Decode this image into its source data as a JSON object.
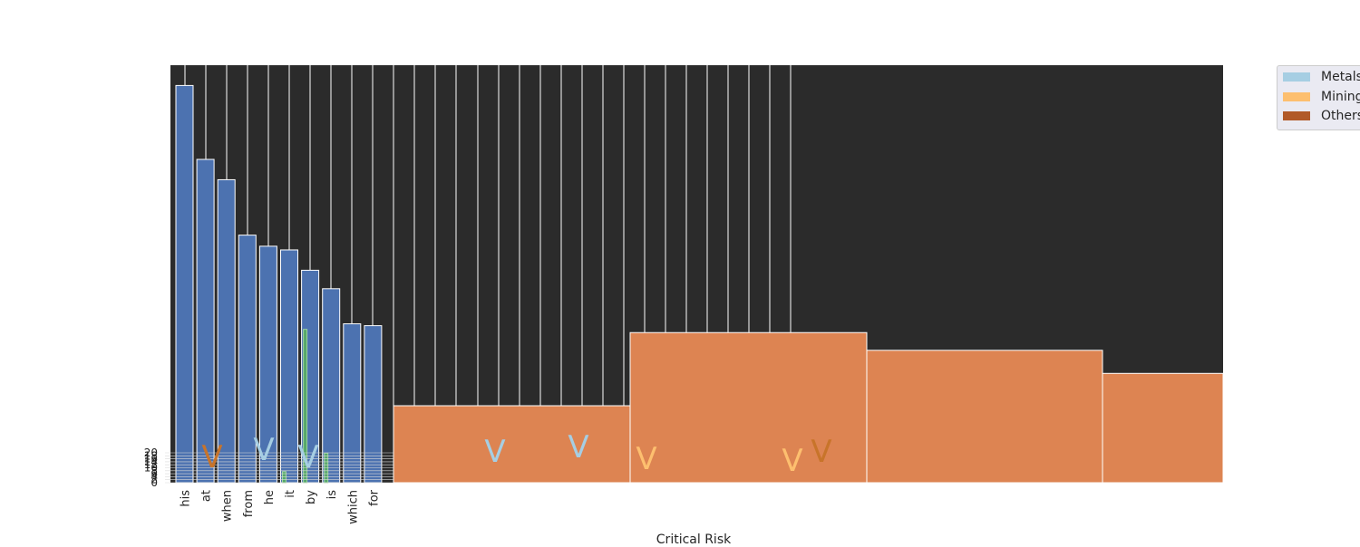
{
  "chart_data": {
    "type": "bar",
    "xlabel": "Critical Risk",
    "categories": [
      "his",
      "at",
      "when",
      "from",
      "he",
      "it",
      "by",
      "is",
      "which",
      "for"
    ],
    "series": [
      {
        "values": [
          21.5,
          17.5,
          16.4,
          13.4,
          12.8,
          12.6,
          11.5,
          10.5,
          8.6,
          8.5
        ],
        "color": "#4c72b0"
      },
      {
        "values": [
          0,
          0,
          0,
          0,
          0,
          0.6,
          8.3,
          1.6,
          0,
          0
        ],
        "color": "#55a868"
      }
    ],
    "broad_bars": {
      "color": "#dd8452",
      "values": [
        1.0,
        1.95,
        1.72,
        1.42
      ]
    },
    "y_ticks": [
      "0",
      "2",
      "4",
      "6",
      "8",
      "10",
      "12",
      "14",
      "16",
      "18",
      "20"
    ],
    "markers": [
      {
        "symbol": "V",
        "color": "#c8742a"
      },
      {
        "symbol": "V",
        "color": "#a6cee3"
      },
      {
        "symbol": "V",
        "color": "#a6cee3"
      },
      {
        "symbol": "V",
        "color": "#a6cee3"
      },
      {
        "symbol": "V",
        "color": "#a6cee3"
      },
      {
        "symbol": "V",
        "color": "#fdbf6f"
      },
      {
        "symbol": "V",
        "color": "#fdbf6f"
      },
      {
        "symbol": "V",
        "color": "#c8742a"
      }
    ],
    "plot_background": "#2b2b2b",
    "grid": true
  },
  "legend": [
    {
      "label": "Metals",
      "color": "#a6cee3"
    },
    {
      "label": "Mining",
      "color": "#fdbf6f"
    },
    {
      "label": "Others",
      "color": "#b15928"
    }
  ]
}
